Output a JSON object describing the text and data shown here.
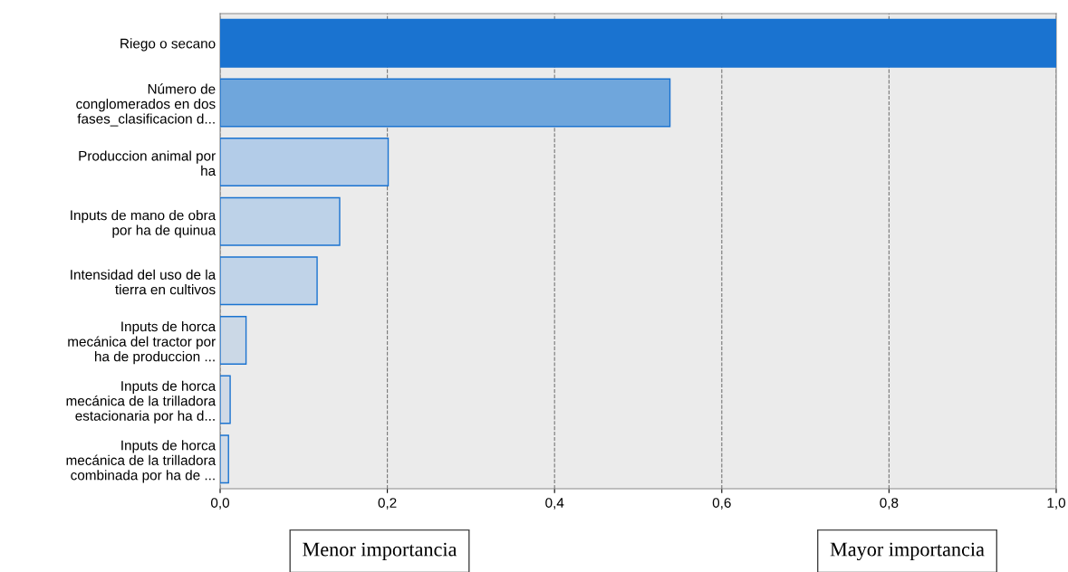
{
  "chart_data": {
    "type": "bar",
    "orientation": "horizontal",
    "categories": [
      "Riego o secano",
      "Número de\nconglomerados en dos\nfases_clasificacion d...",
      "Produccion animal por\nha",
      "Inputs de mano de obra\npor ha de quinua",
      "Intensidad del uso de la\ntierra en cultivos",
      "Inputs de horca\nmecánica del tractor por\nha de produccion ...",
      "Inputs de horca\nmecánica de la trilladora\nestacionaria por ha d...",
      "Inputs de horca\nmecánica de la trilladora\ncombinada por ha de ..."
    ],
    "values": [
      1.0,
      0.538,
      0.201,
      0.143,
      0.116,
      0.031,
      0.012,
      0.01
    ],
    "colors": [
      "#1a73d0",
      "#6fa6dc",
      "#b3cce8",
      "#bdd2e8",
      "#c0d3e8",
      "#cbd8e6",
      "#d0dae6",
      "#d0dae6"
    ],
    "xlim": [
      0,
      1
    ],
    "xticks": [
      {
        "value": 0,
        "label": "0,0"
      },
      {
        "value": 0.2,
        "label": "0,2"
      },
      {
        "value": 0.4,
        "label": "0,4"
      },
      {
        "value": 0.6,
        "label": "0,6"
      },
      {
        "value": 0.8,
        "label": "0,8"
      },
      {
        "value": 1,
        "label": "1,0"
      }
    ],
    "grid": "x",
    "annotations": [
      "Menor importancia",
      "Mayor importancia"
    ]
  }
}
